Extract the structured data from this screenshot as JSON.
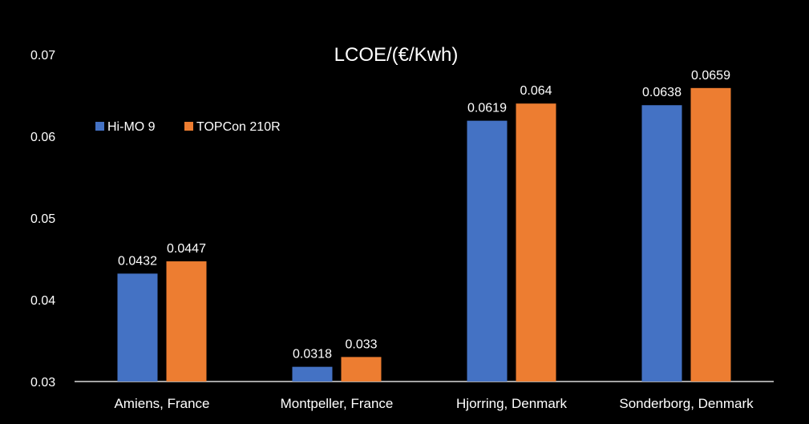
{
  "chart_data": {
    "type": "bar",
    "title": "LCOE/(€/Kwh)",
    "xlabel": "",
    "ylabel": "",
    "ylim": [
      0.03,
      0.07
    ],
    "yticks": [
      "0.03",
      "0.04",
      "0.05",
      "0.06",
      "0.07"
    ],
    "categories": [
      "Amiens, France",
      "Montpeller, France",
      "Hjorring, Denmark",
      "Sonderborg, Denmark"
    ],
    "series": [
      {
        "name": "Hi-MO 9",
        "color": "#4472C4",
        "values": [
          0.0432,
          0.0318,
          0.0619,
          0.0638
        ],
        "labels": [
          "0.0432",
          "0.0318",
          "0.0619",
          "0.0638"
        ]
      },
      {
        "name": "TOPCon 210R",
        "color": "#ED7D31",
        "values": [
          0.0447,
          0.033,
          0.064,
          0.0659
        ],
        "labels": [
          "0.0447",
          "0.033",
          "0.064",
          "0.0659"
        ]
      }
    ],
    "grid": false,
    "legend": "top-left",
    "background": "#000000",
    "text_color": "#ffffff"
  }
}
